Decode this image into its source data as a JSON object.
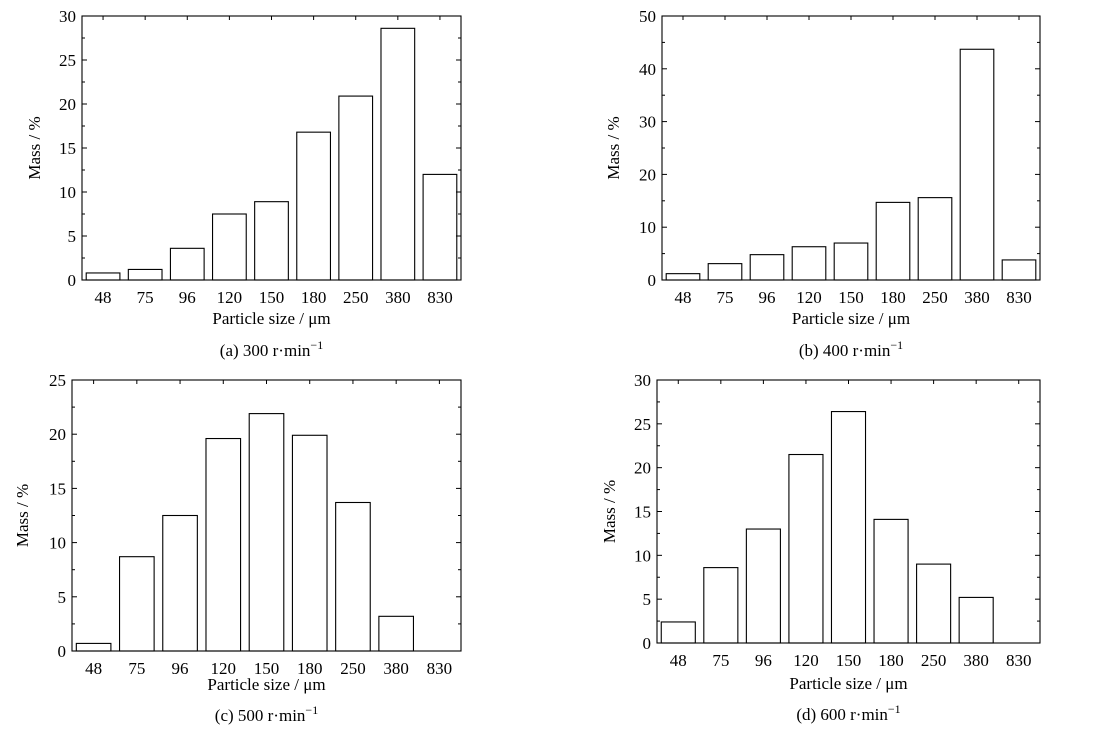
{
  "chart_data": [
    {
      "type": "bar",
      "panel": "a",
      "categories": [
        "48",
        "75",
        "96",
        "120",
        "150",
        "180",
        "250",
        "380",
        "830"
      ],
      "values": [
        0.8,
        1.2,
        3.6,
        7.5,
        8.9,
        16.8,
        20.9,
        28.6,
        12.0
      ],
      "xlabel": "Particle size / μm",
      "ylabel": "Mass / %",
      "ylim": [
        0,
        30
      ],
      "yticks": [
        0,
        5,
        10,
        15,
        20,
        25,
        30
      ],
      "caption_main": "(a) 300 r·min",
      "caption_sup": "−1"
    },
    {
      "type": "bar",
      "panel": "b",
      "categories": [
        "48",
        "75",
        "96",
        "120",
        "150",
        "180",
        "250",
        "380",
        "830"
      ],
      "values": [
        1.2,
        3.1,
        4.8,
        6.3,
        7.0,
        14.7,
        15.6,
        43.7,
        3.8
      ],
      "xlabel": "Particle size / μm",
      "ylabel": "Mass / %",
      "ylim": [
        0,
        50
      ],
      "yticks": [
        0,
        10,
        20,
        30,
        40,
        50
      ],
      "caption_main": "(b) 400 r·min",
      "caption_sup": "−1"
    },
    {
      "type": "bar",
      "panel": "c",
      "categories": [
        "48",
        "75",
        "96",
        "120",
        "150",
        "180",
        "250",
        "380",
        "830"
      ],
      "values": [
        0.7,
        8.7,
        12.5,
        19.6,
        21.9,
        19.9,
        13.7,
        3.2,
        0
      ],
      "xlabel": "Particle size / μm",
      "ylabel": "Mass / %",
      "ylim": [
        0,
        25
      ],
      "yticks": [
        0,
        5,
        10,
        15,
        20,
        25
      ],
      "caption_main": "(c) 500 r·min",
      "caption_sup": "−1"
    },
    {
      "type": "bar",
      "panel": "d",
      "categories": [
        "48",
        "75",
        "96",
        "120",
        "150",
        "180",
        "250",
        "380",
        "830"
      ],
      "values": [
        2.4,
        8.6,
        13.0,
        21.5,
        26.4,
        14.1,
        9.0,
        5.2,
        0
      ],
      "xlabel": "Particle size / μm",
      "ylabel": "Mass / %",
      "ylim": [
        0,
        30
      ],
      "yticks": [
        0,
        5,
        10,
        15,
        20,
        25,
        30
      ],
      "caption_main": "(d) 600 r·min",
      "caption_sup": "−1"
    }
  ]
}
